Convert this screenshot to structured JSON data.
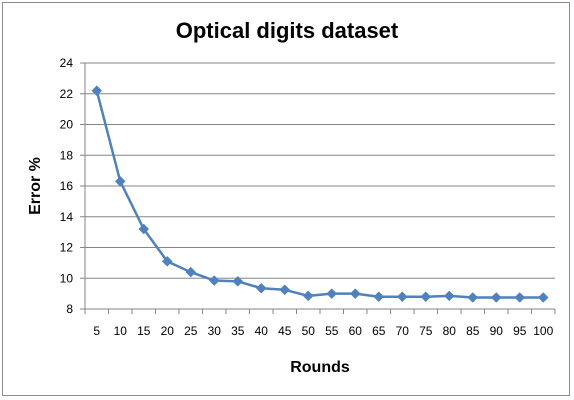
{
  "chart_data": {
    "type": "line",
    "title": "Optical digits dataset",
    "xlabel": "Rounds",
    "ylabel": "Error %",
    "categories": [
      "5",
      "10",
      "15",
      "20",
      "25",
      "30",
      "35",
      "40",
      "45",
      "50",
      "55",
      "60",
      "65",
      "70",
      "75",
      "80",
      "85",
      "90",
      "95",
      "100"
    ],
    "series": [
      {
        "values": [
          22.2,
          16.3,
          13.2,
          11.1,
          10.4,
          9.85,
          9.8,
          9.35,
          9.25,
          8.85,
          9.0,
          9.0,
          8.8,
          8.8,
          8.8,
          8.85,
          8.75,
          8.75,
          8.75,
          8.75
        ],
        "color": "#4f81bd",
        "marker": "diamond"
      }
    ],
    "ylim": [
      8,
      24
    ],
    "yticks": [
      8,
      10,
      12,
      14,
      16,
      18,
      20,
      22,
      24
    ],
    "grid": "horizontal",
    "legend": "none"
  },
  "colors": {
    "series": "#4f81bd",
    "grid": "#868686",
    "axis": "#868686",
    "frame": "#8c8c8c"
  }
}
